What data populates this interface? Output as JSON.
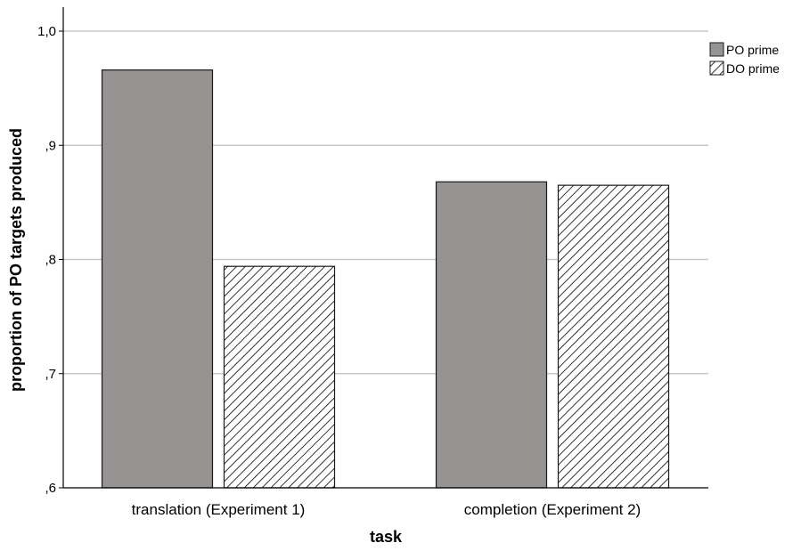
{
  "chart_data": {
    "type": "bar",
    "categories": [
      "translation (Experiment 1)",
      "completion (Experiment 2)"
    ],
    "series": [
      {
        "name": "PO prime",
        "values": [
          0.966,
          0.868
        ],
        "fill": "solid"
      },
      {
        "name": "DO prime",
        "values": [
          0.794,
          0.865
        ],
        "fill": "hatched"
      }
    ],
    "xlabel": "task",
    "ylabel": "proportion of PO targets produced",
    "ylim": [
      0.6,
      1.0
    ],
    "yticks": [
      {
        "value": 0.6,
        "label": ",6"
      },
      {
        "value": 0.7,
        "label": ",7"
      },
      {
        "value": 0.8,
        "label": ",8"
      },
      {
        "value": 0.9,
        "label": ",9"
      },
      {
        "value": 1.0,
        "label": "1,0"
      }
    ],
    "grid": true,
    "legend": "top-right"
  },
  "colors": {
    "bar_solid": "#969393",
    "bar_edge": "#1a1a1a",
    "grid": "#c8c8c8",
    "axis": "#000000"
  }
}
